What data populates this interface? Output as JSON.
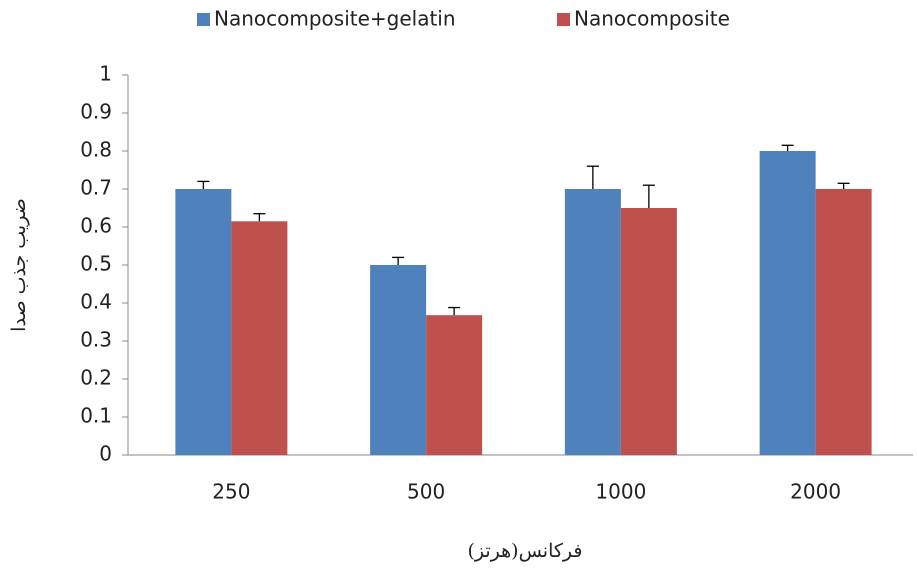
{
  "chart_data": {
    "type": "bar",
    "categories": [
      "250",
      "500",
      "1000",
      "2000"
    ],
    "series": [
      {
        "name": "Nanocomposite+gelatin",
        "color": "#4f81bd",
        "values": [
          0.7,
          0.5,
          0.7,
          0.8
        ],
        "errors": [
          0.02,
          0.02,
          0.06,
          0.015
        ]
      },
      {
        "name": "Nanocomposite",
        "color": "#c0504d",
        "values": [
          0.615,
          0.368,
          0.65,
          0.7
        ],
        "errors": [
          0.02,
          0.02,
          0.06,
          0.015
        ]
      }
    ],
    "ylim": [
      0,
      1
    ],
    "yticks": [
      0,
      0.1,
      0.2,
      0.3,
      0.4,
      0.5,
      0.6,
      0.7,
      0.8,
      0.9,
      1
    ],
    "ylabel": "ضریب جذب صدا",
    "xlabel": "فرکانس(هرتز)",
    "legend": "top",
    "grid": false
  }
}
